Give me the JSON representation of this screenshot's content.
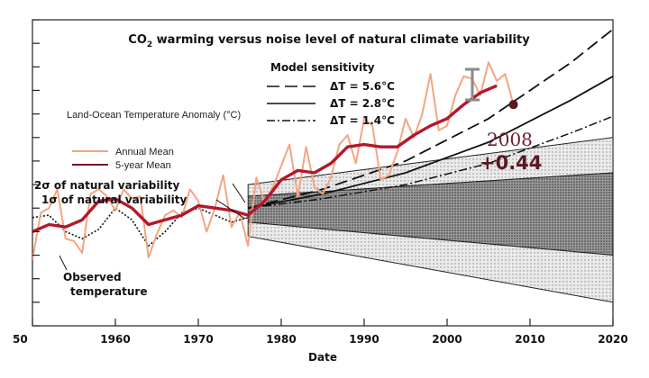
{
  "chart_data": {
    "type": "line",
    "title_co": "CO",
    "title_sub": "2",
    "title_rest": " warming versus noise level of natural climate variability",
    "xlabel": "Date",
    "xlim": [
      1950,
      2020
    ],
    "ylim": [
      -0.5,
      0.8
    ],
    "x_ticks": [
      "50",
      "1960",
      "1970",
      "1980",
      "1990",
      "2000",
      "2010",
      "2020"
    ],
    "y_label": "Land-Ocean Temperature Anomaly (°C)",
    "legend_model_title": "Model sensitivity",
    "legend_model": [
      "ΔT = 5.6°C",
      "ΔT = 2.8°C",
      "ΔT = 1.4°C"
    ],
    "legend_series": [
      "Annual Mean",
      "5-year Mean"
    ],
    "band_labels": [
      "2σ of natural variability",
      "1σ of natural variability"
    ],
    "observed_label": [
      "Observed",
      "temperature"
    ],
    "annotation_year": "2008",
    "annotation_value": "+0.44",
    "colors": {
      "annual": "#f4a582",
      "five_year": "#b2182b",
      "annot": "#6e1f2c"
    },
    "series": [
      {
        "name": "Annual Mean",
        "x": [
          1950,
          1951,
          1952,
          1953,
          1954,
          1955,
          1956,
          1957,
          1958,
          1959,
          1960,
          1961,
          1962,
          1963,
          1964,
          1965,
          1966,
          1967,
          1968,
          1969,
          1970,
          1971,
          1972,
          1973,
          1974,
          1975,
          1976,
          1977,
          1978,
          1979,
          1980,
          1981,
          1982,
          1983,
          1984,
          1985,
          1986,
          1987,
          1988,
          1989,
          1990,
          1991,
          1992,
          1993,
          1994,
          1995,
          1996,
          1997,
          1998,
          1999,
          2000,
          2001,
          2002,
          2003,
          2004,
          2005,
          2006,
          2007,
          2008
        ],
        "y": [
          -0.22,
          -0.02,
          0.0,
          0.08,
          -0.13,
          -0.14,
          -0.19,
          0.06,
          0.08,
          0.05,
          -0.01,
          0.08,
          0.04,
          0.05,
          -0.21,
          -0.11,
          -0.03,
          -0.01,
          -0.04,
          0.08,
          0.03,
          -0.1,
          0.0,
          0.14,
          -0.08,
          -0.02,
          -0.16,
          0.13,
          0.02,
          0.09,
          0.18,
          0.27,
          0.05,
          0.26,
          0.09,
          0.06,
          0.13,
          0.27,
          0.31,
          0.19,
          0.38,
          0.35,
          0.12,
          0.14,
          0.24,
          0.38,
          0.3,
          0.4,
          0.57,
          0.33,
          0.35,
          0.48,
          0.56,
          0.55,
          0.48,
          0.62,
          0.54,
          0.57,
          0.44
        ]
      },
      {
        "name": "5-year Mean",
        "x": [
          1950,
          1952,
          1954,
          1956,
          1958,
          1960,
          1962,
          1964,
          1966,
          1968,
          1970,
          1972,
          1974,
          1976,
          1978,
          1980,
          1982,
          1984,
          1986,
          1988,
          1990,
          1992,
          1994,
          1996,
          1998,
          2000,
          2002,
          2004,
          2006
        ],
        "y": [
          -0.1,
          -0.07,
          -0.08,
          -0.05,
          0.03,
          0.04,
          0.0,
          -0.07,
          -0.05,
          -0.03,
          0.01,
          0.0,
          -0.01,
          -0.03,
          0.03,
          0.12,
          0.16,
          0.15,
          0.19,
          0.26,
          0.27,
          0.26,
          0.26,
          0.31,
          0.35,
          0.38,
          0.44,
          0.49,
          0.52
        ]
      },
      {
        "name": "Observed temperature",
        "x": [
          1950,
          1952,
          1954,
          1956,
          1958,
          1960,
          1962,
          1964,
          1966,
          1968,
          1970,
          1972,
          1974,
          1976
        ],
        "y": [
          -0.04,
          -0.03,
          -0.1,
          -0.13,
          -0.09,
          0.0,
          -0.05,
          -0.16,
          -0.1,
          -0.02,
          0.0,
          -0.03,
          -0.06,
          -0.04
        ]
      },
      {
        "name": "ΔT = 5.6°C",
        "x": [
          1976,
          1985,
          1995,
          2005,
          2015,
          2020
        ],
        "y": [
          0.0,
          0.08,
          0.2,
          0.38,
          0.62,
          0.76
        ]
      },
      {
        "name": "ΔT = 2.8°C",
        "x": [
          1976,
          1985,
          1995,
          2005,
          2015,
          2020
        ],
        "y": [
          0.0,
          0.06,
          0.15,
          0.28,
          0.46,
          0.56
        ]
      },
      {
        "name": "ΔT = 1.4°C",
        "x": [
          1976,
          1985,
          1995,
          2005,
          2015,
          2020
        ],
        "y": [
          0.0,
          0.04,
          0.1,
          0.19,
          0.32,
          0.39
        ]
      }
    ],
    "bands": {
      "sigma2_upper": {
        "x": [
          1976,
          2020
        ],
        "y": [
          0.1,
          0.3
        ]
      },
      "sigma1_upper": {
        "x": [
          1976,
          2020
        ],
        "y": [
          0.05,
          0.15
        ]
      },
      "sigma1_lower": {
        "x": [
          1976,
          2020
        ],
        "y": [
          -0.06,
          -0.2
        ]
      },
      "sigma2_lower": {
        "x": [
          1976,
          2020
        ],
        "y": [
          -0.12,
          -0.4
        ]
      }
    },
    "annotation_point": {
      "x": 2008,
      "y": 0.44
    }
  }
}
